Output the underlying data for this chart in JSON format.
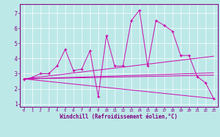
{
  "xlabel": "Windchill (Refroidissement éolien,°C)",
  "bg_color": "#bde8e8",
  "line_color": "#cc00aa",
  "xlim": [
    -0.5,
    23.5
  ],
  "ylim": [
    0.8,
    7.6
  ],
  "yticks": [
    1,
    2,
    3,
    4,
    5,
    6,
    7
  ],
  "xticks": [
    0,
    1,
    2,
    3,
    4,
    5,
    6,
    7,
    8,
    9,
    10,
    11,
    12,
    13,
    14,
    15,
    16,
    17,
    18,
    19,
    20,
    21,
    22,
    23
  ],
  "scatter_x": [
    0,
    1,
    2,
    3,
    4,
    5,
    6,
    7,
    8,
    9,
    10,
    11,
    12,
    13,
    14,
    15,
    16,
    17,
    18,
    19,
    20,
    21,
    22,
    23
  ],
  "scatter_y": [
    2.6,
    2.75,
    3.0,
    3.0,
    3.5,
    4.6,
    3.2,
    3.3,
    4.5,
    1.5,
    5.5,
    3.5,
    3.5,
    6.5,
    7.2,
    3.5,
    6.5,
    6.2,
    5.8,
    4.2,
    4.2,
    2.8,
    2.4,
    1.35
  ],
  "line1_x": [
    0,
    23
  ],
  "line1_y": [
    2.65,
    4.15
  ],
  "line2_x": [
    0,
    23
  ],
  "line2_y": [
    2.65,
    1.35
  ],
  "line3_x": [
    0,
    23
  ],
  "line3_y": [
    2.65,
    3.05
  ],
  "line4_x": [
    0,
    23
  ],
  "line4_y": [
    2.65,
    2.9
  ]
}
